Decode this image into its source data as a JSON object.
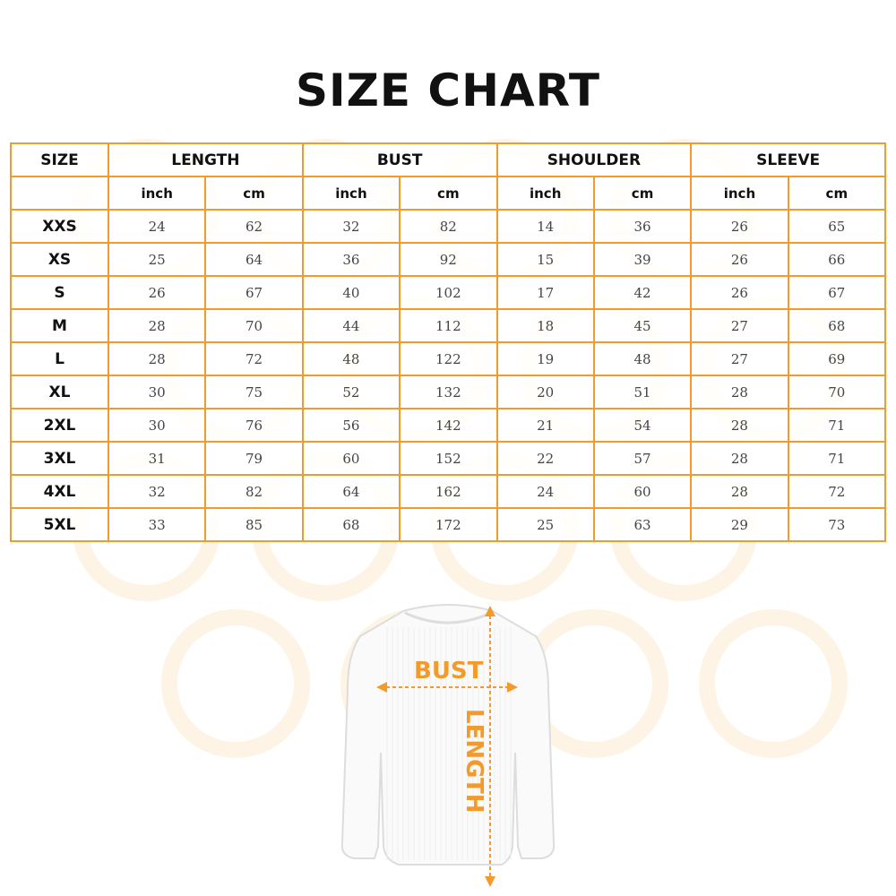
{
  "title": "SIZE CHART",
  "accent_color": "#f39a2c",
  "table": {
    "size_header": "SIZE",
    "groups": [
      "LENGTH",
      "BUST",
      "SHOULDER",
      "SLEEVE"
    ],
    "units": [
      "inch",
      "cm"
    ],
    "rows": [
      {
        "size": "XXS",
        "values": [
          "24",
          "62",
          "32",
          "82",
          "14",
          "36",
          "26",
          "65"
        ]
      },
      {
        "size": "XS",
        "values": [
          "25",
          "64",
          "36",
          "92",
          "15",
          "39",
          "26",
          "66"
        ]
      },
      {
        "size": "S",
        "values": [
          "26",
          "67",
          "40",
          "102",
          "17",
          "42",
          "26",
          "67"
        ]
      },
      {
        "size": "M",
        "values": [
          "28",
          "70",
          "44",
          "112",
          "18",
          "45",
          "27",
          "68"
        ]
      },
      {
        "size": "L",
        "values": [
          "28",
          "72",
          "48",
          "122",
          "19",
          "48",
          "27",
          "69"
        ]
      },
      {
        "size": "XL",
        "values": [
          "30",
          "75",
          "52",
          "132",
          "20",
          "51",
          "28",
          "70"
        ]
      },
      {
        "size": "2XL",
        "values": [
          "30",
          "76",
          "56",
          "142",
          "21",
          "54",
          "28",
          "71"
        ]
      },
      {
        "size": "3XL",
        "values": [
          "31",
          "79",
          "60",
          "152",
          "22",
          "57",
          "28",
          "71"
        ]
      },
      {
        "size": "4XL",
        "values": [
          "32",
          "82",
          "64",
          "162",
          "24",
          "60",
          "28",
          "72"
        ]
      },
      {
        "size": "5XL",
        "values": [
          "33",
          "85",
          "68",
          "172",
          "25",
          "63",
          "29",
          "73"
        ]
      }
    ]
  },
  "illustration": {
    "bust_label": "BUST",
    "length_label": "LENGTH"
  }
}
